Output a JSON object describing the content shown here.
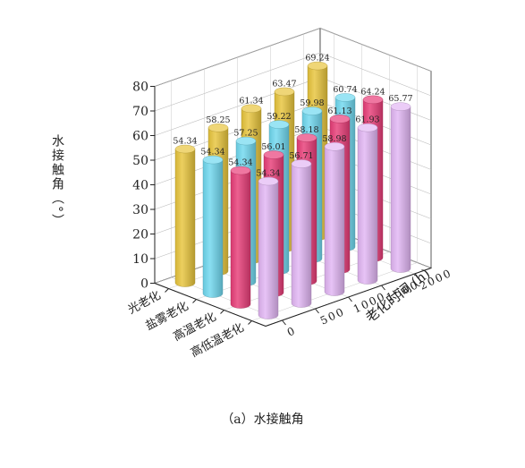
{
  "chart_data": {
    "type": "bar",
    "subtype": "3d-cylinder",
    "caption": "（a）水接触角",
    "ylabel": "水接触角（°）",
    "xlabel": "老化时间 (h)",
    "zlim": [
      0,
      80
    ],
    "z_ticks": [
      0,
      10,
      20,
      30,
      40,
      50,
      60,
      70,
      80
    ],
    "time_ticks": [
      0,
      500,
      1000,
      1500,
      2000
    ],
    "times": [
      0,
      500,
      1000,
      1500,
      2000
    ],
    "grid": true,
    "series": [
      {
        "name": "高低温老化",
        "color": "#e2b6f4",
        "values": [
          54.34,
          56.71,
          58.98,
          61.93,
          65.77
        ],
        "labels": [
          "54.34",
          "56.71",
          "58.98",
          "61.93",
          "65.77"
        ]
      },
      {
        "name": "高温老化",
        "color": "#e83d78",
        "values": [
          54.34,
          56.01,
          58.18,
          61.13,
          64.24
        ],
        "labels": [
          "54.34",
          "56.01",
          "58.18",
          "61.13",
          "64.24"
        ]
      },
      {
        "name": "盐雾老化",
        "color": "#6fd8ef",
        "values": [
          54.34,
          57.25,
          59.22,
          59.98,
          60.74
        ],
        "labels": [
          "54.34",
          "57.25",
          "59.22",
          "59.98",
          "60.74"
        ]
      },
      {
        "name": "光老化",
        "color": "#e8c53c",
        "values": [
          54.34,
          58.25,
          61.34,
          63.47,
          69.24
        ],
        "labels": [
          "54.34",
          "58.25",
          "61.34",
          "63.47",
          "69.24"
        ]
      }
    ]
  }
}
